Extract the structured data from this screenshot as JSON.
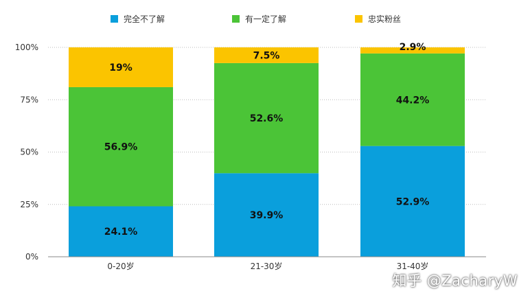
{
  "chart_data": {
    "type": "bar",
    "stacked": true,
    "categories": [
      "0-20岁",
      "21-30岁",
      "31-40岁"
    ],
    "series": [
      {
        "name": "完全不了解",
        "color": "#0a9fdc",
        "values": [
          24.1,
          39.9,
          52.9
        ],
        "labels": [
          "24.1%",
          "39.9%",
          "52.9%"
        ]
      },
      {
        "name": "有一定了解",
        "color": "#4bc437",
        "values": [
          56.9,
          52.6,
          44.2
        ],
        "labels": [
          "56.9%",
          "52.6%",
          "44.2%"
        ]
      },
      {
        "name": "忠实粉丝",
        "color": "#fbc400",
        "values": [
          19,
          7.5,
          2.9
        ],
        "labels": [
          "19%",
          "7.5%",
          "2.9%"
        ]
      }
    ],
    "yticks": [
      0,
      25,
      50,
      75,
      100
    ],
    "ytick_labels": [
      "0%",
      "25%",
      "50%",
      "75%",
      "100%"
    ],
    "ylim": [
      0,
      100
    ],
    "grid": true,
    "legend_position": "top"
  },
  "watermark": "知乎 @ZacharyW"
}
